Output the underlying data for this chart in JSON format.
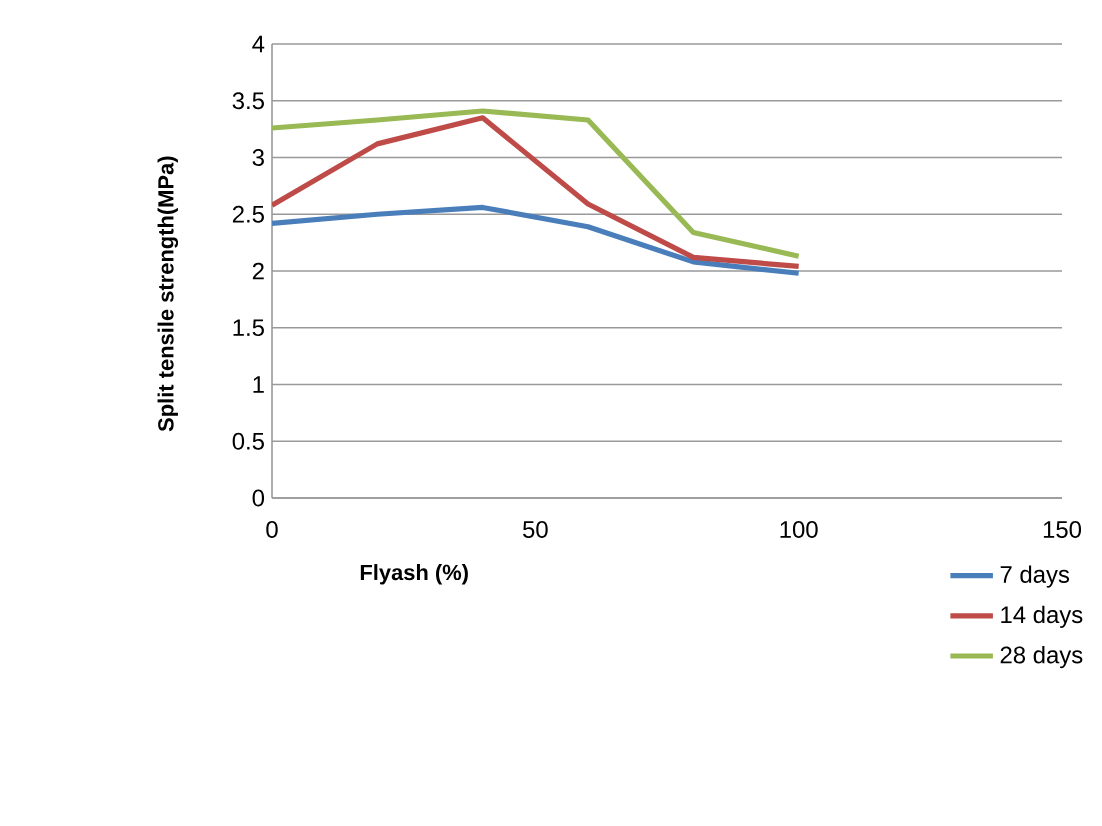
{
  "chart_data": {
    "type": "line",
    "xlabel": "Flyash (%)",
    "ylabel": "Split tensile strength(MPa)",
    "x": [
      0,
      20,
      40,
      60,
      80,
      100
    ],
    "series": [
      {
        "name": "7 days",
        "color": "#4a7ebb",
        "values": [
          2.42,
          2.5,
          2.56,
          2.39,
          2.08,
          1.98
        ]
      },
      {
        "name": "14 days",
        "color": "#be4b48",
        "values": [
          2.58,
          3.12,
          3.35,
          2.59,
          2.12,
          2.04
        ]
      },
      {
        "name": "28 days",
        "color": "#98b954",
        "values": [
          3.26,
          3.33,
          3.41,
          3.33,
          2.34,
          2.13
        ]
      }
    ],
    "xlim": [
      0,
      150
    ],
    "xticks": [
      0,
      50,
      100,
      150
    ],
    "ylim": [
      0,
      4
    ],
    "yticks": [
      0,
      0.5,
      1,
      1.5,
      2,
      2.5,
      3,
      3.5,
      4
    ],
    "grid": "y",
    "legend": "bottom right",
    "marker": "none",
    "line_style": "solid"
  }
}
